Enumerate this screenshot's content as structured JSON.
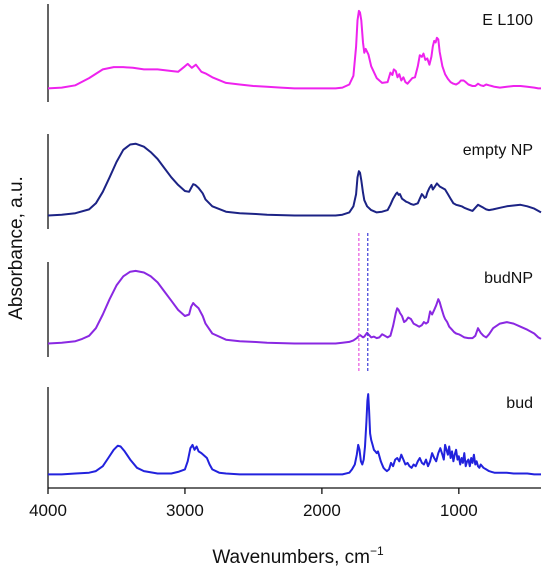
{
  "chart_data": {
    "type": "line",
    "title": "",
    "xlabel": "Wavenumbers, cm",
    "xlabel_superscript": "−1",
    "ylabel": "Absorbance, a.u.",
    "xlim": [
      4000,
      400
    ],
    "x_reversed": true,
    "x_ticks": [
      4000,
      3000,
      2000,
      1000
    ],
    "x_tick_labels": [
      "4000",
      "3000",
      "2000",
      "1000"
    ],
    "reference_lines": [
      {
        "x": 1730,
        "color": "#e754e0",
        "style": "dashed"
      },
      {
        "x": 1665,
        "color": "#3a3ad8",
        "style": "dashed"
      }
    ],
    "series": [
      {
        "name": "E L100",
        "color": "#ee22ee",
        "x": [
          4000,
          3900,
          3800,
          3700,
          3600,
          3520,
          3450,
          3380,
          3300,
          3200,
          3100,
          3050,
          3000,
          2980,
          2950,
          2920,
          2880,
          2850,
          2800,
          2700,
          2600,
          2500,
          2400,
          2300,
          2200,
          2100,
          2000,
          1900,
          1850,
          1800,
          1770,
          1750,
          1740,
          1730,
          1722,
          1712,
          1700,
          1690,
          1680,
          1660,
          1640,
          1600,
          1560,
          1520,
          1500,
          1485,
          1475,
          1460,
          1448,
          1435,
          1420,
          1405,
          1390,
          1375,
          1360,
          1340,
          1320,
          1300,
          1285,
          1270,
          1258,
          1245,
          1230,
          1215,
          1200,
          1190,
          1180,
          1170,
          1160,
          1150,
          1140,
          1120,
          1100,
          1080,
          1060,
          1040,
          1020,
          1000,
          985,
          965,
          950,
          930,
          900,
          880,
          860,
          840,
          820,
          800,
          780,
          760,
          740,
          700,
          650,
          600,
          550,
          500,
          450,
          420,
          400
        ],
        "values": [
          0.02,
          0.03,
          0.06,
          0.15,
          0.26,
          0.29,
          0.29,
          0.28,
          0.26,
          0.26,
          0.24,
          0.23,
          0.3,
          0.33,
          0.28,
          0.32,
          0.23,
          0.21,
          0.16,
          0.09,
          0.07,
          0.05,
          0.04,
          0.03,
          0.02,
          0.02,
          0.02,
          0.02,
          0.03,
          0.07,
          0.18,
          0.55,
          0.88,
          1.0,
          0.98,
          0.88,
          0.6,
          0.47,
          0.52,
          0.45,
          0.3,
          0.15,
          0.09,
          0.1,
          0.22,
          0.19,
          0.26,
          0.24,
          0.16,
          0.2,
          0.12,
          0.16,
          0.1,
          0.08,
          0.11,
          0.15,
          0.16,
          0.3,
          0.44,
          0.42,
          0.46,
          0.38,
          0.4,
          0.32,
          0.42,
          0.55,
          0.62,
          0.6,
          0.66,
          0.64,
          0.48,
          0.3,
          0.2,
          0.14,
          0.1,
          0.08,
          0.07,
          0.09,
          0.12,
          0.12,
          0.1,
          0.07,
          0.05,
          0.05,
          0.08,
          0.06,
          0.05,
          0.07,
          0.06,
          0.05,
          0.04,
          0.03,
          0.04,
          0.05,
          0.05,
          0.04,
          0.03,
          0.02,
          0.02
        ]
      },
      {
        "name": "empty NP",
        "color": "#1c2385",
        "x": [
          4000,
          3900,
          3800,
          3700,
          3650,
          3600,
          3550,
          3500,
          3450,
          3400,
          3360,
          3300,
          3250,
          3200,
          3150,
          3100,
          3050,
          3000,
          2970,
          2955,
          2940,
          2925,
          2900,
          2870,
          2850,
          2800,
          2700,
          2600,
          2500,
          2400,
          2200,
          2000,
          1900,
          1850,
          1800,
          1770,
          1750,
          1740,
          1730,
          1722,
          1712,
          1700,
          1690,
          1670,
          1640,
          1600,
          1560,
          1520,
          1500,
          1480,
          1460,
          1450,
          1440,
          1430,
          1415,
          1400,
          1385,
          1370,
          1350,
          1330,
          1300,
          1285,
          1270,
          1260,
          1250,
          1240,
          1230,
          1215,
          1200,
          1190,
          1175,
          1160,
          1150,
          1140,
          1120,
          1100,
          1080,
          1060,
          1040,
          1020,
          1000,
          980,
          960,
          930,
          900,
          880,
          860,
          840,
          820,
          800,
          780,
          750,
          700,
          650,
          600,
          550,
          500,
          450,
          420,
          400
        ],
        "values": [
          0.02,
          0.03,
          0.05,
          0.1,
          0.18,
          0.33,
          0.52,
          0.72,
          0.88,
          0.95,
          0.96,
          0.92,
          0.85,
          0.76,
          0.64,
          0.52,
          0.42,
          0.34,
          0.33,
          0.38,
          0.43,
          0.42,
          0.38,
          0.31,
          0.23,
          0.14,
          0.07,
          0.05,
          0.04,
          0.03,
          0.02,
          0.02,
          0.02,
          0.03,
          0.06,
          0.14,
          0.3,
          0.52,
          0.6,
          0.58,
          0.48,
          0.32,
          0.22,
          0.14,
          0.09,
          0.06,
          0.07,
          0.09,
          0.16,
          0.24,
          0.3,
          0.32,
          0.29,
          0.3,
          0.24,
          0.22,
          0.2,
          0.19,
          0.17,
          0.16,
          0.18,
          0.24,
          0.3,
          0.28,
          0.25,
          0.26,
          0.32,
          0.38,
          0.42,
          0.36,
          0.4,
          0.44,
          0.42,
          0.4,
          0.38,
          0.36,
          0.3,
          0.24,
          0.18,
          0.16,
          0.15,
          0.14,
          0.12,
          0.1,
          0.08,
          0.12,
          0.16,
          0.14,
          0.12,
          0.1,
          0.09,
          0.1,
          0.12,
          0.14,
          0.15,
          0.16,
          0.14,
          0.11,
          0.08,
          0.06
        ]
      },
      {
        "name": "budNP",
        "color": "#8a28e2",
        "x": [
          4000,
          3900,
          3800,
          3750,
          3700,
          3650,
          3600,
          3550,
          3500,
          3450,
          3400,
          3360,
          3300,
          3250,
          3200,
          3150,
          3100,
          3050,
          3000,
          2970,
          2955,
          2940,
          2925,
          2900,
          2870,
          2850,
          2800,
          2700,
          2600,
          2500,
          2400,
          2200,
          2000,
          1900,
          1850,
          1800,
          1770,
          1745,
          1730,
          1720,
          1700,
          1690,
          1670,
          1660,
          1650,
          1640,
          1620,
          1600,
          1580,
          1560,
          1540,
          1520,
          1500,
          1480,
          1460,
          1450,
          1440,
          1430,
          1415,
          1400,
          1385,
          1370,
          1350,
          1330,
          1310,
          1290,
          1270,
          1255,
          1240,
          1225,
          1210,
          1195,
          1180,
          1165,
          1150,
          1140,
          1130,
          1120,
          1110,
          1100,
          1085,
          1070,
          1050,
          1035,
          1020,
          1000,
          980,
          960,
          930,
          900,
          880,
          860,
          840,
          820,
          800,
          780,
          750,
          700,
          650,
          600,
          550,
          500,
          450,
          420,
          400
        ],
        "values": [
          0.02,
          0.03,
          0.05,
          0.08,
          0.12,
          0.22,
          0.4,
          0.6,
          0.78,
          0.9,
          0.96,
          0.97,
          0.95,
          0.9,
          0.82,
          0.7,
          0.58,
          0.46,
          0.38,
          0.4,
          0.5,
          0.55,
          0.52,
          0.48,
          0.38,
          0.28,
          0.15,
          0.07,
          0.05,
          0.04,
          0.03,
          0.02,
          0.02,
          0.02,
          0.03,
          0.04,
          0.06,
          0.09,
          0.12,
          0.13,
          0.1,
          0.11,
          0.16,
          0.14,
          0.12,
          0.1,
          0.11,
          0.09,
          0.1,
          0.14,
          0.12,
          0.1,
          0.12,
          0.25,
          0.42,
          0.48,
          0.46,
          0.42,
          0.38,
          0.3,
          0.32,
          0.36,
          0.34,
          0.28,
          0.26,
          0.24,
          0.26,
          0.3,
          0.28,
          0.3,
          0.44,
          0.4,
          0.46,
          0.52,
          0.6,
          0.56,
          0.5,
          0.44,
          0.38,
          0.34,
          0.3,
          0.24,
          0.2,
          0.17,
          0.15,
          0.14,
          0.12,
          0.1,
          0.09,
          0.09,
          0.12,
          0.22,
          0.16,
          0.12,
          0.1,
          0.14,
          0.22,
          0.28,
          0.3,
          0.28,
          0.24,
          0.2,
          0.15,
          0.1,
          0.08
        ]
      },
      {
        "name": "bud",
        "color": "#2222dd",
        "x": [
          4000,
          3900,
          3800,
          3700,
          3650,
          3600,
          3560,
          3520,
          3490,
          3470,
          3440,
          3400,
          3350,
          3300,
          3200,
          3100,
          3050,
          3000,
          2980,
          2960,
          2945,
          2930,
          2915,
          2900,
          2880,
          2860,
          2840,
          2820,
          2800,
          2750,
          2700,
          2600,
          2500,
          2400,
          2200,
          2000,
          1900,
          1850,
          1800,
          1780,
          1760,
          1745,
          1735,
          1725,
          1715,
          1705,
          1695,
          1685,
          1675,
          1668,
          1662,
          1655,
          1648,
          1640,
          1630,
          1620,
          1610,
          1600,
          1590,
          1580,
          1570,
          1560,
          1550,
          1540,
          1525,
          1510,
          1495,
          1480,
          1465,
          1450,
          1435,
          1420,
          1405,
          1390,
          1375,
          1360,
          1345,
          1330,
          1315,
          1300,
          1285,
          1270,
          1255,
          1240,
          1225,
          1210,
          1195,
          1180,
          1165,
          1150,
          1135,
          1120,
          1110,
          1100,
          1090,
          1080,
          1070,
          1060,
          1050,
          1040,
          1030,
          1020,
          1010,
          1000,
          990,
          980,
          970,
          960,
          950,
          940,
          930,
          920,
          910,
          900,
          890,
          880,
          870,
          860,
          850,
          840,
          820,
          800,
          780,
          760,
          740,
          700,
          650,
          600,
          550,
          500,
          450,
          420,
          400
        ],
        "values": [
          0.02,
          0.02,
          0.03,
          0.04,
          0.06,
          0.12,
          0.22,
          0.32,
          0.37,
          0.36,
          0.3,
          0.2,
          0.1,
          0.06,
          0.03,
          0.03,
          0.05,
          0.08,
          0.18,
          0.34,
          0.38,
          0.32,
          0.36,
          0.3,
          0.28,
          0.25,
          0.22,
          0.14,
          0.08,
          0.04,
          0.03,
          0.02,
          0.02,
          0.02,
          0.02,
          0.02,
          0.02,
          0.02,
          0.04,
          0.08,
          0.14,
          0.26,
          0.38,
          0.32,
          0.18,
          0.14,
          0.2,
          0.36,
          0.66,
          0.92,
          1.0,
          0.8,
          0.52,
          0.44,
          0.38,
          0.32,
          0.3,
          0.28,
          0.3,
          0.24,
          0.18,
          0.14,
          0.1,
          0.08,
          0.06,
          0.08,
          0.16,
          0.12,
          0.2,
          0.22,
          0.18,
          0.26,
          0.2,
          0.14,
          0.16,
          0.12,
          0.1,
          0.14,
          0.12,
          0.18,
          0.22,
          0.16,
          0.14,
          0.2,
          0.12,
          0.18,
          0.28,
          0.22,
          0.18,
          0.28,
          0.34,
          0.26,
          0.2,
          0.38,
          0.32,
          0.26,
          0.36,
          0.22,
          0.3,
          0.18,
          0.26,
          0.32,
          0.2,
          0.24,
          0.14,
          0.22,
          0.16,
          0.28,
          0.12,
          0.18,
          0.2,
          0.12,
          0.22,
          0.16,
          0.26,
          0.14,
          0.18,
          0.12,
          0.1,
          0.14,
          0.1,
          0.08,
          0.06,
          0.05,
          0.04,
          0.04,
          0.04,
          0.03,
          0.03,
          0.03,
          0.02,
          0.02,
          0.02
        ]
      }
    ]
  }
}
